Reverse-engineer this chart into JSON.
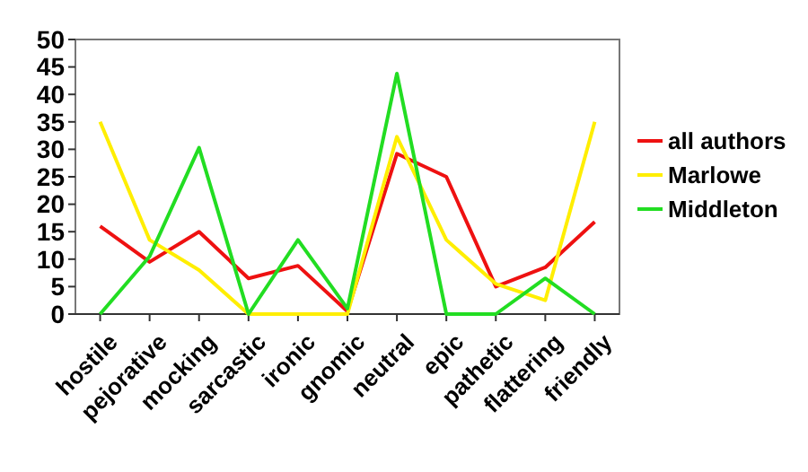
{
  "chart_data": {
    "type": "line",
    "categories": [
      "hostile",
      "pejorative",
      "mocking",
      "sarcastic",
      "ironic",
      "gnomic",
      "neutral",
      "epic",
      "pathetic",
      "flattering",
      "friendly"
    ],
    "series": [
      {
        "name": "all authors",
        "color": "#ee1111",
        "values": [
          16,
          9.5,
          15,
          6.5,
          8.8,
          0.5,
          29.2,
          25,
          5,
          8.5,
          16.8
        ]
      },
      {
        "name": "Marlowe",
        "color": "#ffee00",
        "values": [
          35,
          13.5,
          8,
          0,
          0,
          0,
          32.3,
          13.5,
          5.5,
          2.5,
          35
        ]
      },
      {
        "name": "Middleton",
        "color": "#22dd22",
        "values": [
          0,
          10.5,
          30.3,
          0,
          13.5,
          1,
          43.8,
          0,
          0,
          6.5,
          0
        ]
      }
    ],
    "ylim": [
      0,
      50
    ],
    "yticks": [
      0,
      5,
      10,
      15,
      20,
      25,
      30,
      35,
      40,
      45,
      50
    ],
    "grid": false,
    "legend": "right",
    "marker": "none",
    "line_style": "solid"
  }
}
